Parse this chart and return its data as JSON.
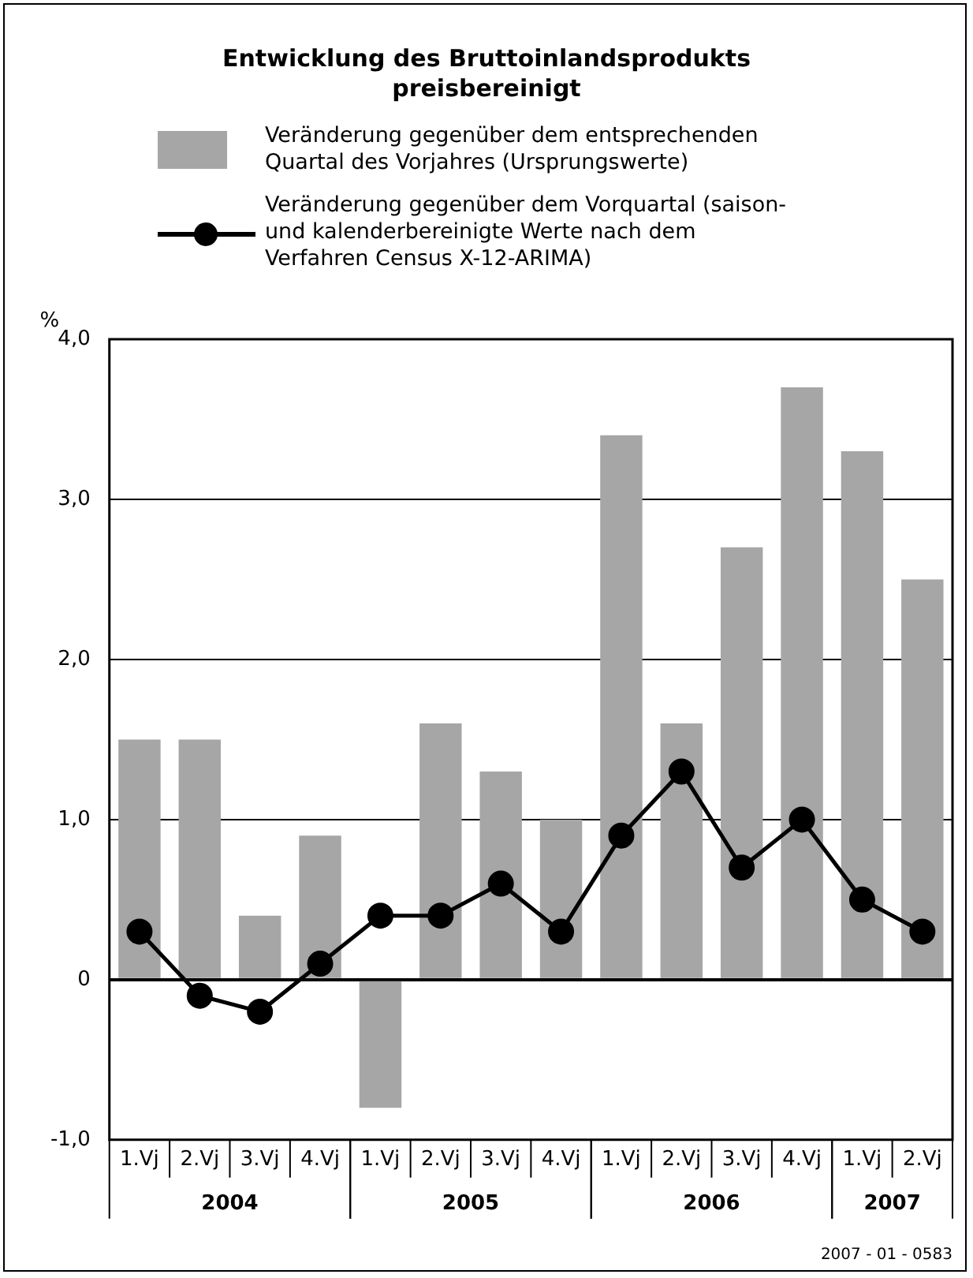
{
  "chart_data": {
    "type": "bar",
    "title": "Entwicklung des Bruttoinlandsprodukts preisbereinigt",
    "ylabel": "%",
    "categories": [
      "1.Vj",
      "2.Vj",
      "3.Vj",
      "4.Vj",
      "1.Vj",
      "2.Vj",
      "3.Vj",
      "4.Vj",
      "1.Vj",
      "2.Vj",
      "3.Vj",
      "4.Vj",
      "1.Vj",
      "2.Vj"
    ],
    "series": [
      {
        "name": "Veränderung gegenüber dem entsprechenden Quartal des Vorjahres (Ursprungswerte)",
        "color": "#a6a6a6",
        "values": [
          1.5,
          1.5,
          0.4,
          0.9,
          -0.8,
          1.6,
          1.3,
          1.0,
          3.4,
          1.6,
          2.7,
          3.7,
          3.3,
          2.5
        ]
      },
      {
        "name": "Veränderung gegenüber dem Vorquartal (saison- und kalenderbereinigte Werte nach dem Verfahren Census X-12-ARIMA)",
        "type": "line",
        "color": "#000000",
        "values": [
          0.3,
          -0.1,
          -0.2,
          0.1,
          0.4,
          0.4,
          0.6,
          0.3,
          0.9,
          1.3,
          0.7,
          1.0,
          0.5,
          0.3
        ]
      }
    ],
    "ylim": [
      -1,
      4
    ],
    "yticks": [
      {
        "value": -1,
        "label": "-1,0"
      },
      0,
      {
        "value": 1,
        "label": "1,0"
      },
      {
        "value": 2,
        "label": "2,0"
      },
      {
        "value": 3,
        "label": "3,0"
      },
      {
        "value": 4,
        "label": "4,0"
      }
    ],
    "grid": "y",
    "legend": "top",
    "marker": "circle",
    "line_style": "solid",
    "annotations": [
      "2004",
      "2005",
      "2006",
      "2007",
      "2007 - 01 - 0583"
    ]
  }
}
